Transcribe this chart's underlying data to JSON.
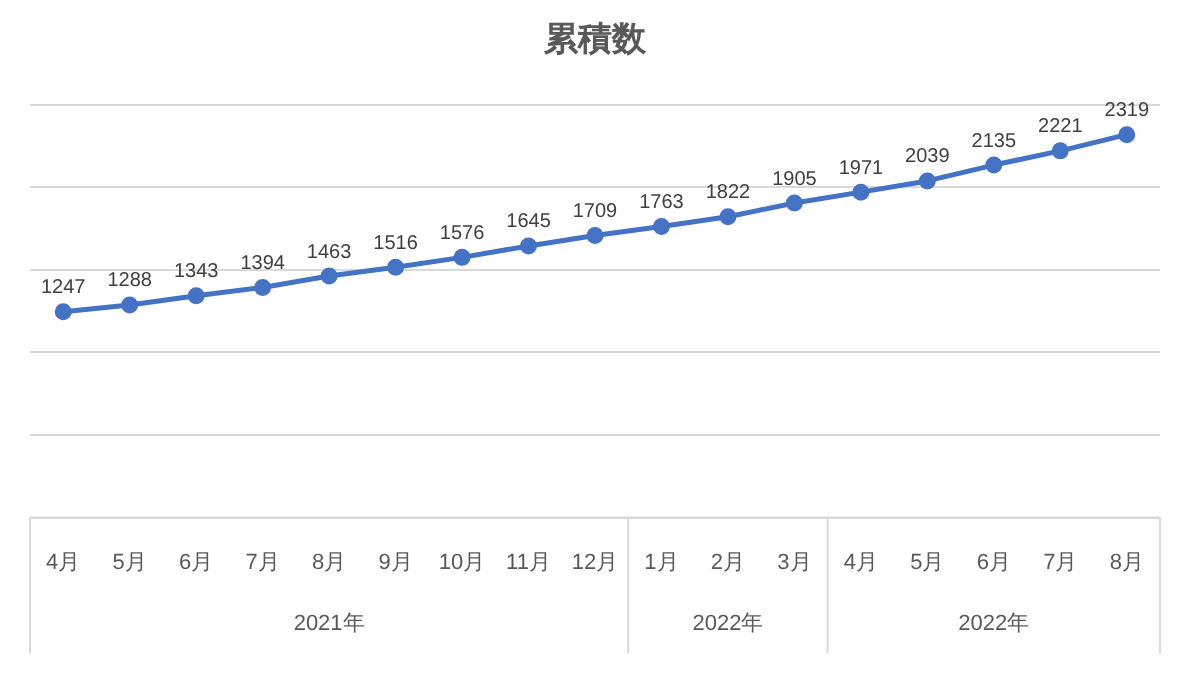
{
  "chart_data": {
    "type": "line",
    "title": "累積数",
    "categories": [
      "4月",
      "5月",
      "6月",
      "7月",
      "8月",
      "9月",
      "10月",
      "11月",
      "12月",
      "1月",
      "2月",
      "3月",
      "4月",
      "5月",
      "6月",
      "7月",
      "8月"
    ],
    "values": [
      1247,
      1288,
      1343,
      1394,
      1463,
      1516,
      1576,
      1645,
      1709,
      1763,
      1822,
      1905,
      1971,
      2039,
      2135,
      2221,
      2319
    ],
    "color": "#4472c4",
    "marker": "circle",
    "line_style": "solid",
    "data_labels": true,
    "ylim": [
      0,
      2500
    ],
    "yticks": [
      {
        "value": 0,
        "label": null
      },
      {
        "value": 500,
        "label": null
      },
      {
        "value": 1000,
        "label": null
      },
      {
        "value": 1500,
        "label": null
      },
      {
        "value": 2000,
        "label": null
      },
      {
        "value": 2500,
        "label": null
      }
    ],
    "tick_labels": "x",
    "grid": "y",
    "legend": false,
    "annotations": [
      "2021年",
      "2022年",
      "2022年"
    ]
  }
}
